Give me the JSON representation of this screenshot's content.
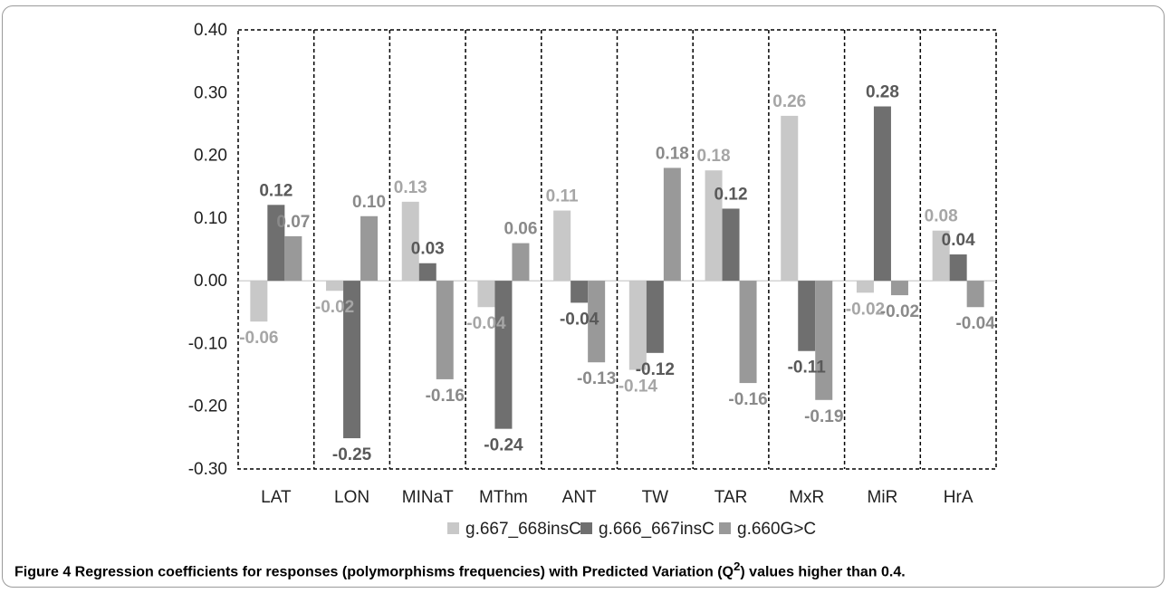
{
  "chart_data": {
    "type": "bar",
    "title": "",
    "xlabel": "",
    "ylabel": "",
    "ylim": [
      -0.3,
      0.4
    ],
    "yticks": [
      0.4,
      0.3,
      0.2,
      0.1,
      0.0,
      -0.1,
      -0.2,
      -0.3
    ],
    "ytick_labels": [
      "0.40",
      "0.30",
      "0.20",
      "0.10",
      "0.00",
      "-0.10",
      "-0.20",
      "-0.30"
    ],
    "categories": [
      "LAT",
      "LON",
      "MINaT",
      "MThm",
      "ANT",
      "TW",
      "TAR",
      "MxR",
      "MiR",
      "HrA"
    ],
    "legend_position": "bottom",
    "grid": "dashed vertical separators between categories",
    "series": [
      {
        "name": "g.667_668insC",
        "color": "#c8c8c8",
        "label_color": "#a6a6a6",
        "values": [
          -0.065,
          -0.016,
          0.126,
          -0.042,
          0.112,
          -0.142,
          0.176,
          0.263,
          -0.019,
          0.08
        ],
        "labels": [
          "-0.06",
          "-0.02",
          "0.13",
          "-0.04",
          "0.11",
          "-0.14",
          "0.18",
          "0.26",
          "-0.02",
          "0.08"
        ]
      },
      {
        "name": "g.666_667insC",
        "color": "#6f6f6f",
        "label_color": "#595959",
        "values": [
          0.121,
          -0.251,
          0.028,
          -0.236,
          -0.035,
          -0.115,
          0.115,
          -0.112,
          0.278,
          0.042
        ],
        "labels": [
          "0.12",
          "-0.25",
          "0.03",
          "-0.24",
          "-0.04",
          "-0.12",
          "0.12",
          "-0.11",
          "0.28",
          "0.04"
        ]
      },
      {
        "name": "g.660G>C",
        "color": "#999999",
        "label_color": "#8a8a8a",
        "values": [
          0.071,
          0.103,
          -0.157,
          0.06,
          -0.13,
          0.18,
          -0.163,
          -0.19,
          -0.023,
          -0.042
        ],
        "labels": [
          "0.07",
          "0.10",
          "-0.16",
          "0.06",
          "-0.13",
          "0.18",
          "-0.16",
          "-0.19",
          "-0.02",
          "-0.04"
        ]
      }
    ]
  },
  "caption": {
    "lead": "Figure 4",
    "text_before_sup": " Regression coefficients for responses (polymorphisms frequencies) with Predicted Variation (Q",
    "sup": "2",
    "text_after_sup": ") values higher than 0.4."
  }
}
